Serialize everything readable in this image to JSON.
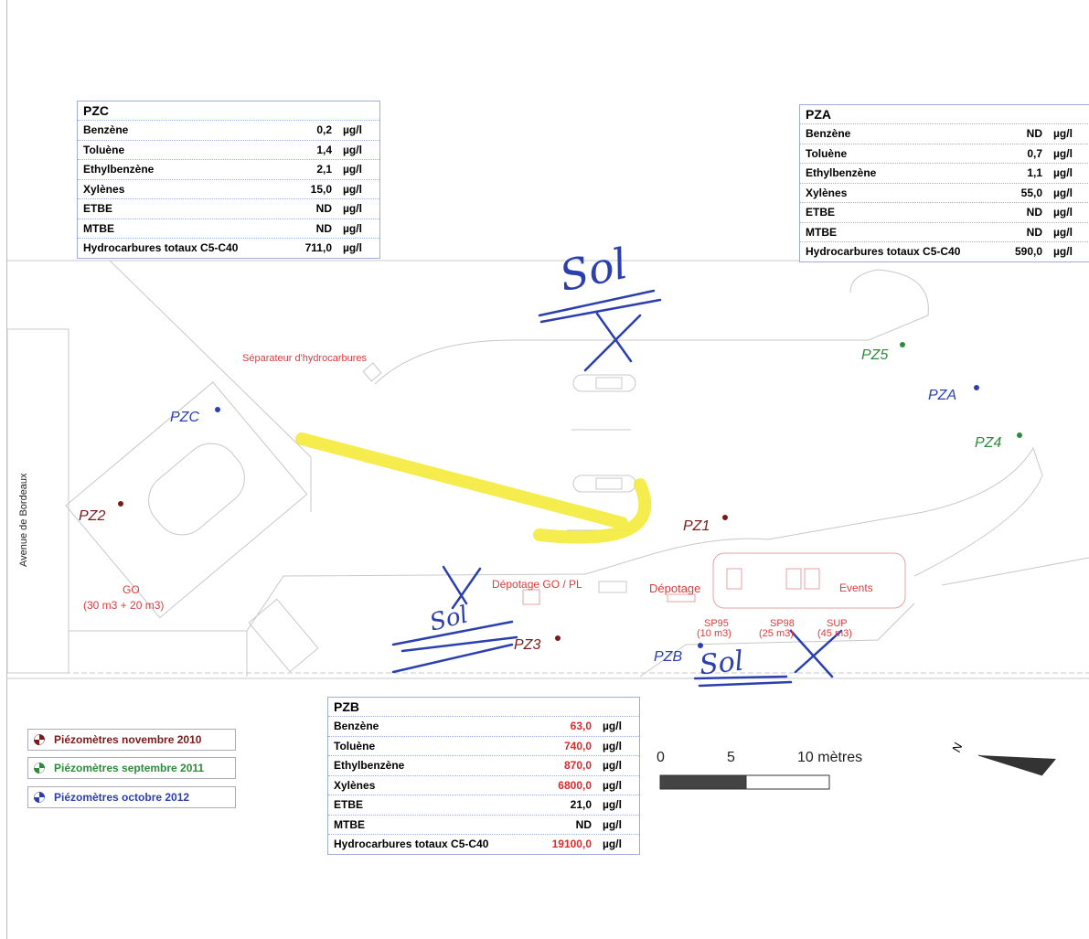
{
  "tables": {
    "pzc": {
      "title": "PZC",
      "rows": [
        {
          "name": "Benzène",
          "value": "0,2",
          "unit": "µg/l"
        },
        {
          "name": "Toluène",
          "value": "1,4",
          "unit": "µg/l"
        },
        {
          "name": "Ethylbenzène",
          "value": "2,1",
          "unit": "µg/l"
        },
        {
          "name": "Xylènes",
          "value": "15,0",
          "unit": "µg/l"
        },
        {
          "name": "ETBE",
          "value": "ND",
          "unit": "µg/l"
        },
        {
          "name": "MTBE",
          "value": "ND",
          "unit": "µg/l"
        },
        {
          "name": "Hydrocarbures totaux C5-C40",
          "value": "711,0",
          "unit": "µg/l"
        }
      ]
    },
    "pza": {
      "title": "PZA",
      "rows": [
        {
          "name": "Benzène",
          "value": "ND",
          "unit": "µg/l"
        },
        {
          "name": "Toluène",
          "value": "0,7",
          "unit": "µg/l"
        },
        {
          "name": "Ethylbenzène",
          "value": "1,1",
          "unit": "µg/l"
        },
        {
          "name": "Xylènes",
          "value": "55,0",
          "unit": "µg/l"
        },
        {
          "name": "ETBE",
          "value": "ND",
          "unit": "µg/l"
        },
        {
          "name": "MTBE",
          "value": "ND",
          "unit": "µg/l"
        },
        {
          "name": "Hydrocarbures totaux C5-C40",
          "value": "590,0",
          "unit": "µg/l"
        }
      ]
    },
    "pzb": {
      "title": "PZB",
      "rows": [
        {
          "name": "Benzène",
          "value": "63,0",
          "unit": "µg/l",
          "red": true
        },
        {
          "name": "Toluène",
          "value": "740,0",
          "unit": "µg/l",
          "red": true
        },
        {
          "name": "Ethylbenzène",
          "value": "870,0",
          "unit": "µg/l",
          "red": true
        },
        {
          "name": "Xylènes",
          "value": "6800,0",
          "unit": "µg/l",
          "red": true
        },
        {
          "name": "ETBE",
          "value": "21,0",
          "unit": "µg/l",
          "red": false
        },
        {
          "name": "MTBE",
          "value": "ND",
          "unit": "µg/l",
          "red": false
        },
        {
          "name": "Hydrocarbures totaux C5-C40",
          "value": "19100,0",
          "unit": "µg/l",
          "red": true
        }
      ]
    }
  },
  "wells": {
    "pzc": "PZC",
    "pza": "PZA",
    "pzb": "PZB",
    "pz1": "PZ1",
    "pz2": "PZ2",
    "pz3": "PZ3",
    "pz4": "PZ4",
    "pz5": "PZ5"
  },
  "map_labels": {
    "separator": "Séparateur d'hydrocarbures",
    "avenue": "Avenue de Bordeaux",
    "go_tank": "GO",
    "go_tank_volume": "(30 m3 + 20 m3)",
    "depotage_go_pl": "Dépotage GO / PL",
    "depotage": "Dépotage",
    "events": "Events",
    "sp95": "SP95",
    "sp95_volume": "(10 m3)",
    "sp98": "SP98",
    "sp98_volume": "(25 m3)",
    "sup": "SUP",
    "sup_volume": "(45 m3)"
  },
  "annotations": {
    "sol_top": "Sol",
    "sol_left": "Sol",
    "sol_bottom": "Sol"
  },
  "legend": [
    {
      "label": "Piézomètres novembre 2010",
      "color": "#7a1a1a"
    },
    {
      "label": "Piézomètres septembre 2011",
      "color": "#2e8b3c"
    },
    {
      "label": "Piézomètres octobre 2012",
      "color": "#2b3fae"
    }
  ],
  "scale": {
    "ticks": [
      "0",
      "5",
      "10 mètres"
    ]
  },
  "north": "N",
  "colors": {
    "ink": "#2b3fae",
    "highlight": "#f5ea3a",
    "site_red": "#e03a3a"
  }
}
